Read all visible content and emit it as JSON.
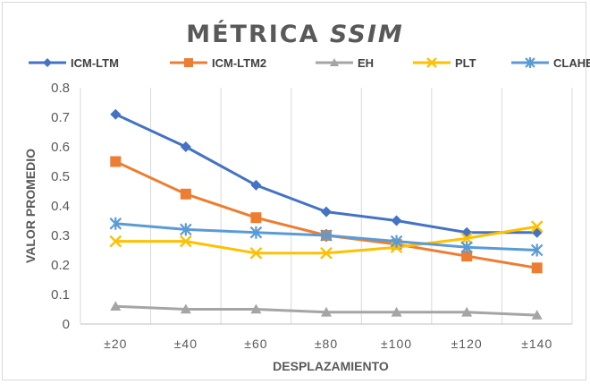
{
  "chart_data": {
    "type": "line",
    "title_main": "MÉTRICA",
    "title_italic": "SSIM",
    "xlabel": "DESPLAZAMIENTO",
    "ylabel": "VALOR PROMEDIO",
    "categories": [
      "±20",
      "±40",
      "±60",
      "±80",
      "±100",
      "±120",
      "±140"
    ],
    "ylim": [
      0,
      0.8
    ],
    "yticks": [
      "0",
      "0.1",
      "0.2",
      "0.3",
      "0.4",
      "0.5",
      "0.6",
      "0.7",
      "0.8"
    ],
    "grid": "vertical",
    "legend_position": "top",
    "series": [
      {
        "name": "ICM-LTM",
        "color": "#4472c4",
        "marker": "diamond",
        "values": [
          0.71,
          0.6,
          0.47,
          0.38,
          0.35,
          0.31,
          0.31
        ]
      },
      {
        "name": "ICM-LTM2",
        "color": "#ed7d31",
        "marker": "square",
        "values": [
          0.55,
          0.44,
          0.36,
          0.3,
          0.27,
          0.23,
          0.19
        ]
      },
      {
        "name": "EH",
        "color": "#a5a5a5",
        "marker": "triangle",
        "values": [
          0.06,
          0.05,
          0.05,
          0.04,
          0.04,
          0.04,
          0.03
        ]
      },
      {
        "name": "PLT",
        "color": "#ffc000",
        "marker": "x",
        "values": [
          0.28,
          0.28,
          0.24,
          0.24,
          0.26,
          0.29,
          0.33
        ]
      },
      {
        "name": "CLAHE",
        "color": "#5b9bd5",
        "marker": "asterisk",
        "values": [
          0.34,
          0.32,
          0.31,
          0.3,
          0.28,
          0.26,
          0.25
        ]
      }
    ]
  }
}
